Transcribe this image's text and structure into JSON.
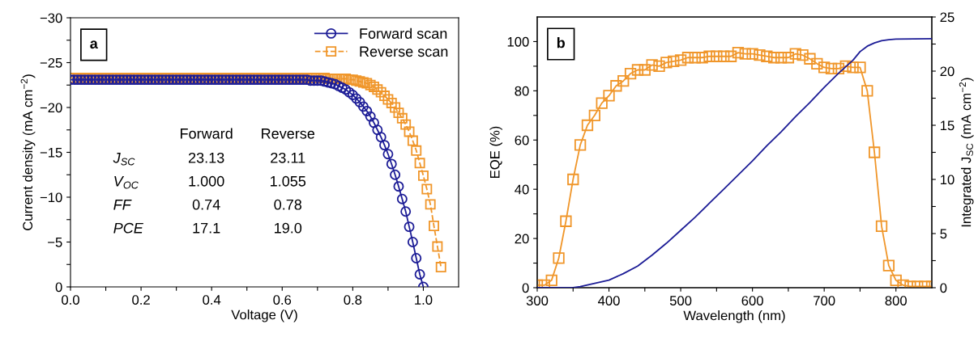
{
  "chart_data": [
    {
      "type": "line",
      "xlabel": "Voltage (V)",
      "ylabel": "Current density (mA cm$^{−2}$)",
      "xlim": [
        0,
        1.1
      ],
      "xticks": [
        {
          "value": 0.0,
          "label": "0.0"
        },
        {
          "value": 0.1,
          "label": null
        },
        {
          "value": 0.2,
          "label": "0.2"
        },
        {
          "value": 0.3,
          "label": null
        },
        {
          "value": 0.4,
          "label": "0.4"
        },
        {
          "value": 0.5,
          "label": null
        },
        {
          "value": 0.6,
          "label": "0.6"
        },
        {
          "value": 0.7,
          "label": null
        },
        {
          "value": 0.8,
          "label": "0.8"
        },
        {
          "value": 0.9,
          "label": null
        },
        {
          "value": 1.0,
          "label": "1.0"
        }
      ],
      "ylim": [
        0,
        -30
      ],
      "yticks": [
        0,
        {
          "value": -2.5,
          "label": null
        },
        {
          "value": -5,
          "label": "−5"
        },
        {
          "value": -7.5,
          "label": null
        },
        {
          "value": -10,
          "label": "−10"
        },
        {
          "value": -12.5,
          "label": null
        },
        {
          "value": -15,
          "label": "−15"
        },
        {
          "value": -17.5,
          "label": null
        },
        {
          "value": -20,
          "label": "−20"
        },
        {
          "value": -22.5,
          "label": null
        },
        {
          "value": -25,
          "label": "−25"
        },
        {
          "value": -27.5,
          "label": null
        },
        {
          "value": -30,
          "label": "−30"
        }
      ],
      "grid": false,
      "legend": "top right",
      "annotations": [
        "a",
        "Forward",
        "Reverse",
        "J$_{SC}$",
        "23.13",
        "23.11",
        "V$_{OC}$",
        "1.000",
        "1.055",
        "FF",
        "0.74",
        "0.78",
        "PCE",
        "17.1",
        "19.0"
      ],
      "series": [
        {
          "name": "Forward scan",
          "color": "#1c1c96",
          "marker": "circle",
          "line_style": "solid",
          "x": [
            0.0,
            0.01,
            0.02,
            0.03,
            0.04,
            0.05,
            0.06,
            0.07,
            0.08,
            0.09,
            0.1,
            0.11,
            0.12,
            0.13,
            0.14,
            0.15,
            0.16,
            0.17,
            0.18,
            0.19,
            0.2,
            0.21,
            0.22,
            0.23,
            0.24,
            0.25,
            0.26,
            0.27,
            0.28,
            0.29,
            0.3,
            0.31,
            0.32,
            0.33,
            0.34,
            0.35,
            0.36,
            0.37,
            0.38,
            0.39,
            0.4,
            0.41,
            0.42,
            0.43,
            0.44,
            0.45,
            0.46,
            0.47,
            0.48,
            0.49,
            0.5,
            0.51,
            0.52,
            0.53,
            0.54,
            0.55,
            0.56,
            0.57,
            0.58,
            0.59,
            0.6,
            0.61,
            0.62,
            0.63,
            0.64,
            0.65,
            0.66,
            0.67,
            0.68,
            0.69,
            0.7,
            0.71,
            0.72,
            0.73,
            0.74,
            0.75,
            0.76,
            0.77,
            0.78,
            0.79,
            0.8,
            0.81,
            0.82,
            0.83,
            0.84,
            0.85,
            0.86,
            0.87,
            0.88,
            0.89,
            0.9,
            0.91,
            0.92,
            0.93,
            0.94,
            0.95,
            0.96,
            0.97,
            0.98,
            0.99,
            1.0
          ],
          "values": [
            -23.1,
            -23.1,
            -23.1,
            -23.1,
            -23.1,
            -23.1,
            -23.1,
            -23.1,
            -23.1,
            -23.1,
            -23.1,
            -23.1,
            -23.1,
            -23.1,
            -23.1,
            -23.1,
            -23.1,
            -23.1,
            -23.1,
            -23.1,
            -23.1,
            -23.1,
            -23.1,
            -23.1,
            -23.1,
            -23.1,
            -23.1,
            -23.1,
            -23.1,
            -23.1,
            -23.1,
            -23.1,
            -23.1,
            -23.1,
            -23.1,
            -23.1,
            -23.1,
            -23.1,
            -23.1,
            -23.1,
            -23.1,
            -23.1,
            -23.1,
            -23.1,
            -23.1,
            -23.1,
            -23.1,
            -23.1,
            -23.1,
            -23.1,
            -23.1,
            -23.1,
            -23.1,
            -23.1,
            -23.1,
            -23.1,
            -23.1,
            -23.1,
            -23.1,
            -23.1,
            -23.1,
            -23.1,
            -23.1,
            -23.1,
            -23.1,
            -23.1,
            -23.1,
            -23.1,
            -23.0,
            -23.0,
            -23.0,
            -23.0,
            -22.9,
            -22.8,
            -22.7,
            -22.6,
            -22.4,
            -22.2,
            -22.0,
            -21.7,
            -21.4,
            -21.0,
            -20.6,
            -20.1,
            -19.6,
            -19.0,
            -18.3,
            -17.5,
            -16.7,
            -15.8,
            -14.8,
            -13.7,
            -12.5,
            -11.2,
            -9.8,
            -8.4,
            -6.7,
            -5.0,
            -3.2,
            -1.4,
            0
          ]
        },
        {
          "name": "Reverse scan",
          "color": "#f0962a",
          "marker": "square",
          "line_style": "dashed",
          "x": [
            0.0,
            0.01,
            0.02,
            0.03,
            0.04,
            0.05,
            0.06,
            0.07,
            0.08,
            0.09,
            0.1,
            0.11,
            0.12,
            0.13,
            0.14,
            0.15,
            0.16,
            0.17,
            0.18,
            0.19,
            0.2,
            0.21,
            0.22,
            0.23,
            0.24,
            0.25,
            0.26,
            0.27,
            0.28,
            0.29,
            0.3,
            0.31,
            0.32,
            0.33,
            0.34,
            0.35,
            0.36,
            0.37,
            0.38,
            0.39,
            0.4,
            0.41,
            0.42,
            0.43,
            0.44,
            0.45,
            0.46,
            0.47,
            0.48,
            0.49,
            0.5,
            0.51,
            0.52,
            0.53,
            0.54,
            0.55,
            0.56,
            0.57,
            0.58,
            0.59,
            0.6,
            0.61,
            0.62,
            0.63,
            0.64,
            0.65,
            0.66,
            0.67,
            0.68,
            0.69,
            0.7,
            0.71,
            0.72,
            0.73,
            0.74,
            0.75,
            0.76,
            0.77,
            0.78,
            0.79,
            0.8,
            0.81,
            0.82,
            0.83,
            0.84,
            0.85,
            0.86,
            0.87,
            0.88,
            0.89,
            0.9,
            0.91,
            0.92,
            0.93,
            0.94,
            0.95,
            0.96,
            0.97,
            0.98,
            0.99,
            1.0,
            1.01,
            1.02,
            1.03,
            1.04,
            1.05
          ],
          "values": [
            -23.3,
            -23.3,
            -23.3,
            -23.3,
            -23.3,
            -23.3,
            -23.3,
            -23.3,
            -23.3,
            -23.3,
            -23.3,
            -23.3,
            -23.3,
            -23.3,
            -23.3,
            -23.3,
            -23.3,
            -23.3,
            -23.3,
            -23.3,
            -23.3,
            -23.3,
            -23.3,
            -23.3,
            -23.3,
            -23.3,
            -23.3,
            -23.3,
            -23.3,
            -23.3,
            -23.3,
            -23.3,
            -23.3,
            -23.3,
            -23.3,
            -23.3,
            -23.3,
            -23.3,
            -23.3,
            -23.3,
            -23.3,
            -23.3,
            -23.3,
            -23.3,
            -23.3,
            -23.3,
            -23.3,
            -23.3,
            -23.3,
            -23.3,
            -23.3,
            -23.3,
            -23.3,
            -23.3,
            -23.3,
            -23.3,
            -23.3,
            -23.3,
            -23.3,
            -23.3,
            -23.3,
            -23.3,
            -23.3,
            -23.3,
            -23.3,
            -23.3,
            -23.3,
            -23.3,
            -23.3,
            -23.3,
            -23.3,
            -23.3,
            -23.3,
            -23.2,
            -23.2,
            -23.2,
            -23.2,
            -23.2,
            -23.2,
            -23.1,
            -23.1,
            -23.0,
            -22.9,
            -22.8,
            -22.7,
            -22.5,
            -22.3,
            -22.0,
            -21.7,
            -21.3,
            -20.9,
            -20.5,
            -20.0,
            -19.4,
            -18.8,
            -18.1,
            -17.3,
            -16.3,
            -15.2,
            -13.8,
            -12.4,
            -10.9,
            -9.2,
            -6.8,
            -4.5,
            -2.2
          ]
        }
      ]
    },
    {
      "type": "line",
      "xlabel": "Wavelength (nm)",
      "ylabel": "EQE (%)",
      "y2label": "Integrated J$_{SC}$ (mA cm$^{−2}$)",
      "xlim": [
        300,
        850
      ],
      "xticks": [
        300,
        {
          "value": 350,
          "label": null
        },
        400,
        {
          "value": 450,
          "label": null
        },
        500,
        {
          "value": 550,
          "label": null
        },
        600,
        {
          "value": 650,
          "label": null
        },
        700,
        {
          "value": 750,
          "label": null
        },
        800
      ],
      "ylim": [
        0,
        110
      ],
      "yticks": [
        0,
        {
          "value": 10,
          "label": null
        },
        20,
        {
          "value": 30,
          "label": null
        },
        40,
        {
          "value": 50,
          "label": null
        },
        60,
        {
          "value": 70,
          "label": null
        },
        80,
        {
          "value": 90,
          "label": null
        },
        100
      ],
      "y2lim": [
        0,
        25
      ],
      "y2ticks": [
        0,
        {
          "value": 2.5,
          "label": null
        },
        5,
        {
          "value": 7.5,
          "label": null
        },
        10,
        {
          "value": 12.5,
          "label": null
        },
        15,
        {
          "value": 17.5,
          "label": null
        },
        20,
        {
          "value": 22.5,
          "label": null
        },
        25
      ],
      "grid": false,
      "legend": false,
      "annotations": [
        "b"
      ],
      "series": [
        {
          "color": "#f0962a",
          "marker": "square",
          "line_style": "solid",
          "x": [
            300,
            310,
            320,
            330,
            340,
            350,
            360,
            370,
            380,
            390,
            400,
            410,
            420,
            430,
            440,
            450,
            460,
            470,
            480,
            490,
            500,
            510,
            520,
            530,
            540,
            550,
            560,
            570,
            580,
            590,
            600,
            610,
            620,
            630,
            640,
            650,
            660,
            670,
            680,
            690,
            700,
            710,
            720,
            730,
            740,
            750,
            760,
            770,
            780,
            790,
            800,
            810,
            820,
            830,
            840,
            850
          ],
          "values": [
            1,
            1,
            3,
            12,
            27,
            44,
            58,
            66,
            70,
            75,
            78,
            82,
            84,
            87,
            88.5,
            88.5,
            90.5,
            90,
            91.5,
            92,
            92.5,
            93.5,
            93.5,
            93.5,
            94,
            94,
            94,
            94,
            95.5,
            95,
            95,
            94.5,
            94,
            93.5,
            93.5,
            93.5,
            95,
            94.5,
            93,
            91,
            89.5,
            89,
            89,
            90,
            89.5,
            89.5,
            80,
            55,
            25,
            9,
            3,
            1,
            0.5,
            0.5,
            0.5,
            0.5
          ]
        },
        {
          "color": "#1c1c96",
          "marker": "none",
          "line_style": "solid",
          "axis": "y2",
          "x": [
            300,
            350,
            360,
            380,
            400,
            420,
            440,
            460,
            480,
            500,
            520,
            540,
            560,
            580,
            600,
            620,
            640,
            660,
            680,
            700,
            720,
            740,
            750,
            760,
            770,
            780,
            790,
            800,
            850
          ],
          "values": [
            0,
            0,
            0.1,
            0.4,
            0.7,
            1.3,
            2,
            3,
            4.1,
            5.3,
            6.5,
            7.8,
            9.1,
            10.4,
            11.7,
            13.1,
            14.4,
            15.8,
            17.1,
            18.5,
            19.8,
            21.0,
            21.8,
            22.3,
            22.6,
            22.8,
            22.9,
            22.95,
            23.0
          ]
        }
      ]
    }
  ]
}
